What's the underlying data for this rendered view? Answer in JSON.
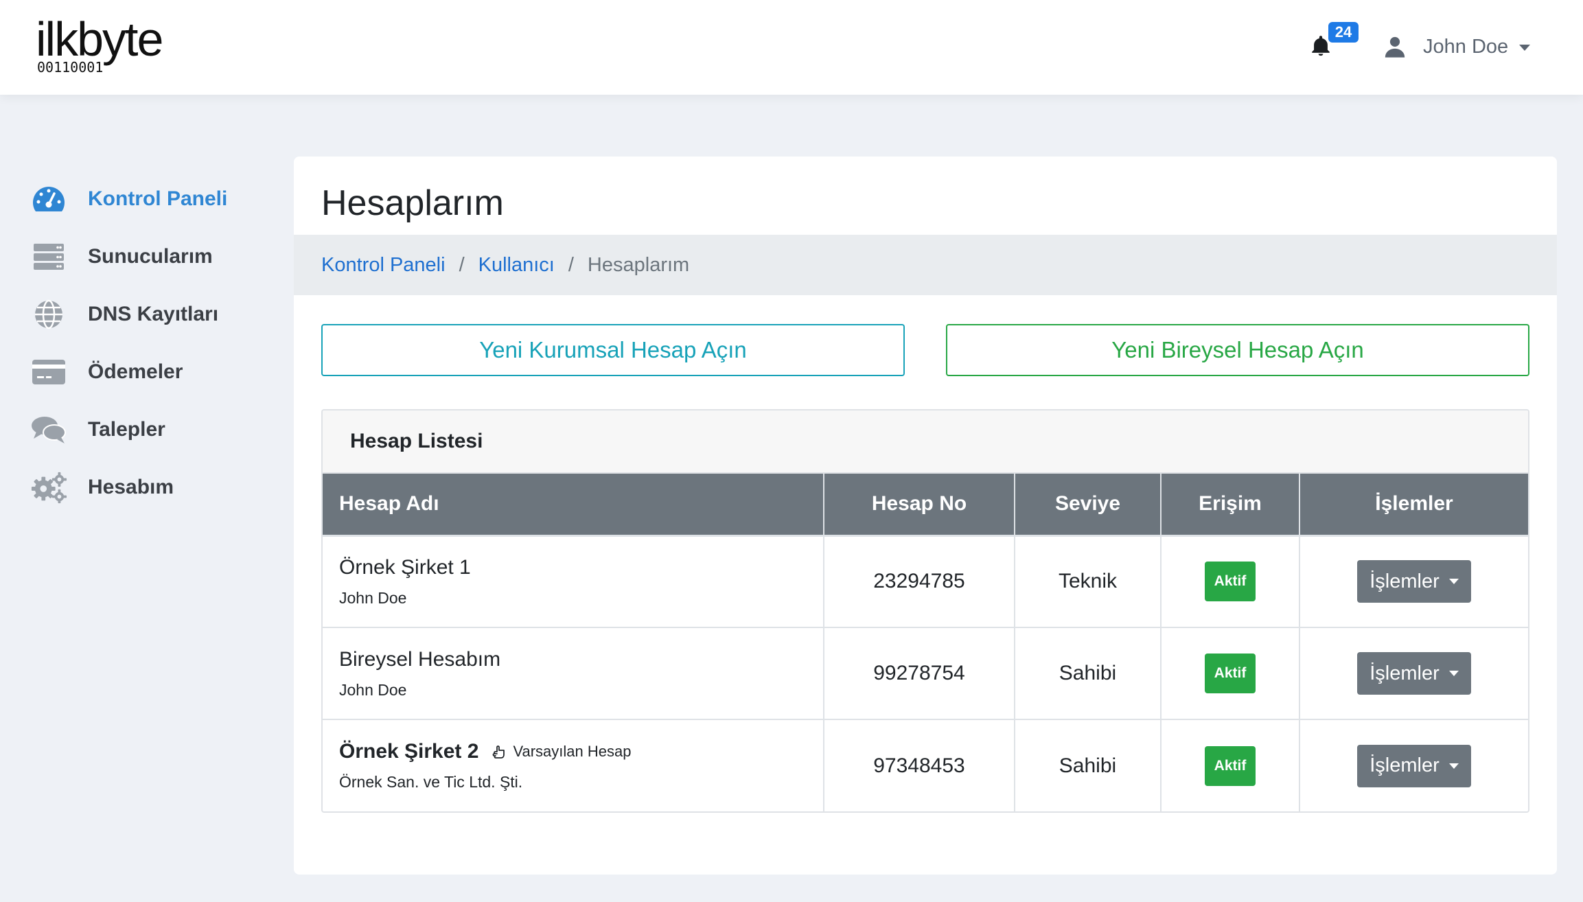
{
  "brand": {
    "name": "ilkbyte",
    "bits": "00110001"
  },
  "header": {
    "notification_count": "24",
    "user_name": "John Doe"
  },
  "sidebar": {
    "items": [
      {
        "label": "Kontrol Paneli",
        "icon": "dashboard-gauge-icon",
        "active": true
      },
      {
        "label": "Sunucularım",
        "icon": "server-icon",
        "active": false
      },
      {
        "label": "DNS Kayıtları",
        "icon": "globe-icon",
        "active": false
      },
      {
        "label": "Ödemeler",
        "icon": "credit-card-icon",
        "active": false
      },
      {
        "label": "Talepler",
        "icon": "comments-icon",
        "active": false
      },
      {
        "label": "Hesabım",
        "icon": "cogs-icon",
        "active": false
      }
    ]
  },
  "page": {
    "title": "Hesaplarım",
    "breadcrumb": {
      "item1": "Kontrol Paneli",
      "item2": "Kullanıcı",
      "current": "Hesaplarım",
      "separator": "/"
    },
    "btn_corporate": "Yeni Kurumsal Hesap Açın",
    "btn_individual": "Yeni Bireysel Hesap Açın"
  },
  "list": {
    "title": "Hesap Listesi",
    "columns": {
      "name": "Hesap Adı",
      "number": "Hesap No",
      "level": "Seviye",
      "access": "Erişim",
      "actions": "İşlemler"
    },
    "rows": [
      {
        "name": "Örnek Şirket 1",
        "sub": "John Doe",
        "number": "23294785",
        "level": "Teknik",
        "access": "Aktif",
        "actions": "İşlemler"
      },
      {
        "name": "Bireysel Hesabım",
        "sub": "John Doe",
        "number": "99278754",
        "level": "Sahibi",
        "access": "Aktif",
        "actions": "İşlemler"
      },
      {
        "name": "Örnek Şirket 2",
        "default_label": "Varsayılan Hesap",
        "sub": "Örnek San. ve Tic Ltd. Şti.",
        "number": "97348453",
        "level": "Sahibi",
        "access": "Aktif",
        "actions": "İşlemler"
      }
    ]
  },
  "colors": {
    "accent_blue": "#2f86d3",
    "info_teal": "#17a2b8",
    "success_green": "#28a745",
    "table_header": "#6c757d",
    "badge_blue": "#1e7ae6"
  }
}
